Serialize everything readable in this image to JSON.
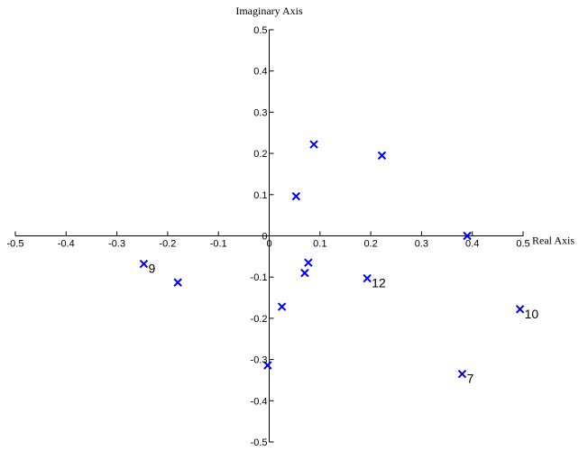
{
  "chart_data": {
    "type": "scatter",
    "marker": "x",
    "marker_color": "#0000ff",
    "xlabel": "Real Axis",
    "ylabel": "Imaginary Axis",
    "xlim": [
      -0.5,
      0.5
    ],
    "ylim": [
      -0.5,
      0.5
    ],
    "x_ticks": [
      -0.5,
      -0.4,
      -0.3,
      -0.2,
      -0.1,
      0,
      0.1,
      0.2,
      0.3,
      0.4,
      0.5
    ],
    "y_ticks": [
      -0.5,
      -0.4,
      -0.3,
      -0.2,
      -0.1,
      0,
      0.1,
      0.2,
      0.3,
      0.4,
      0.5
    ],
    "x_tick_labels": [
      "-0.5",
      "-0.4",
      "-0.3",
      "-0.2",
      "-0.1",
      "0",
      "0.1",
      "0.2",
      "0.3",
      "0.4",
      "0.5"
    ],
    "y_tick_labels": [
      "-0.5",
      "-0.4",
      "-0.3",
      "-0.2",
      "-0.1",
      "0",
      "0.1",
      "0.2",
      "0.3",
      "0.4",
      "0.5"
    ],
    "grid": false,
    "points": [
      {
        "x": 0.088,
        "y": 0.222,
        "label": ""
      },
      {
        "x": 0.222,
        "y": 0.195,
        "label": ""
      },
      {
        "x": 0.053,
        "y": 0.096,
        "label": ""
      },
      {
        "x": 0.39,
        "y": 0.0,
        "label": ""
      },
      {
        "x": -0.247,
        "y": -0.068,
        "label": "9"
      },
      {
        "x": -0.18,
        "y": -0.113,
        "label": ""
      },
      {
        "x": 0.077,
        "y": -0.065,
        "label": ""
      },
      {
        "x": 0.07,
        "y": -0.09,
        "label": ""
      },
      {
        "x": 0.193,
        "y": -0.103,
        "label": "12"
      },
      {
        "x": 0.494,
        "y": -0.178,
        "label": "10"
      },
      {
        "x": 0.025,
        "y": -0.172,
        "label": ""
      },
      {
        "x": -0.003,
        "y": -0.314,
        "label": ""
      },
      {
        "x": 0.38,
        "y": -0.335,
        "label": "7"
      }
    ]
  }
}
